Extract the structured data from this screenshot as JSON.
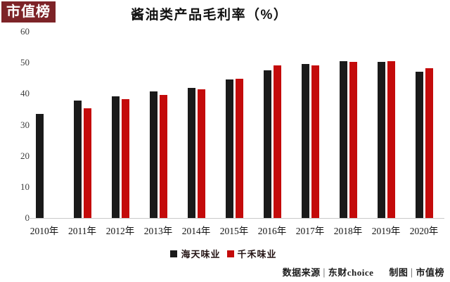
{
  "logo": {
    "text": "市值榜",
    "bg_color": "#7d2327",
    "text_color": "#ffffff"
  },
  "title": "酱油类产品毛利率（%）",
  "chart_data": {
    "type": "bar",
    "title": "酱油类产品毛利率（%）",
    "categories": [
      "2010年",
      "2011年",
      "2012年",
      "2013年",
      "2014年",
      "2015年",
      "2016年",
      "2017年",
      "2018年",
      "2019年",
      "2020年"
    ],
    "series": [
      {
        "name": "海天味业",
        "color": "#1a1a1a",
        "values": [
          33.5,
          37.9,
          39.2,
          40.7,
          41.9,
          44.6,
          47.6,
          49.6,
          50.6,
          50.3,
          47.2
        ]
      },
      {
        "name": "千禾味业",
        "color": "#c40b0b",
        "values": [
          null,
          35.4,
          38.3,
          39.7,
          41.5,
          44.9,
          49.2,
          49.1,
          50.3,
          50.5,
          48.3
        ]
      }
    ],
    "ylim": [
      0,
      60
    ],
    "yticks": [
      60,
      50,
      40,
      30,
      20,
      10,
      0
    ],
    "grid": false,
    "legend_position": "bottom"
  },
  "footer": {
    "source_label": "数据来源",
    "separator": "|",
    "source_value": "东财choice",
    "credit_label": "制图",
    "credit_value": "市值榜"
  }
}
